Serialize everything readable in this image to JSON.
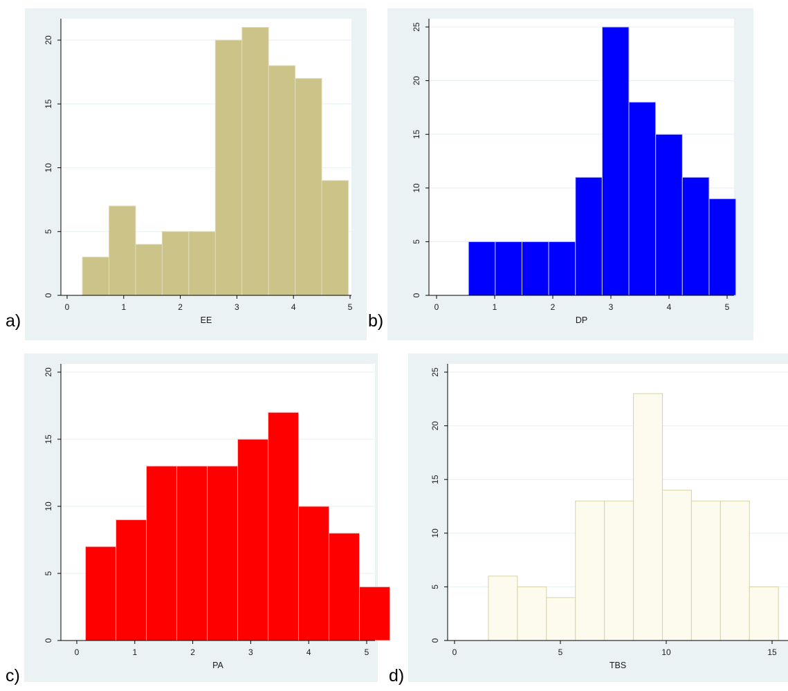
{
  "chart_data": [
    {
      "type": "bar",
      "panel_label": "a)",
      "xlabel": "EE",
      "ylabel": "",
      "xlim": [
        0,
        5
      ],
      "ylim": [
        0,
        21
      ],
      "xticks": [
        0,
        1,
        2,
        3,
        4,
        5
      ],
      "yticks": [
        0,
        5,
        10,
        15,
        20
      ],
      "bin_width": 0.47,
      "bin_start": 0.27,
      "values": [
        3,
        7,
        4,
        5,
        5,
        20,
        21,
        18,
        17,
        9
      ],
      "color": "#cbc387",
      "edge_color": "#e2ddba"
    },
    {
      "type": "bar",
      "panel_label": "b)",
      "xlabel": "DP",
      "ylabel": "",
      "xlim": [
        0,
        5
      ],
      "ylim": [
        0,
        25
      ],
      "xticks": [
        0,
        1,
        2,
        3,
        4,
        5
      ],
      "yticks": [
        0,
        5,
        10,
        15,
        20,
        25
      ],
      "bin_width": 0.46,
      "bin_start": 0.55,
      "values": [
        5,
        5,
        5,
        5,
        11,
        25,
        18,
        15,
        11,
        9
      ],
      "color": "#0000ff",
      "edge_color": "#c9c9f0"
    },
    {
      "type": "bar",
      "panel_label": "c)",
      "xlabel": "PA",
      "ylabel": "",
      "xlim": [
        0,
        5
      ],
      "ylim": [
        0,
        20
      ],
      "xticks": [
        0,
        1,
        2,
        3,
        4,
        5
      ],
      "yticks": [
        0,
        5,
        10,
        15,
        20
      ],
      "bin_width": 0.525,
      "bin_start": 0.15,
      "values": [
        7,
        9,
        13,
        13,
        13,
        15,
        17,
        10,
        8,
        4
      ],
      "color": "#ff0000",
      "edge_color": "#f4c6c6"
    },
    {
      "type": "bar",
      "panel_label": "d)",
      "xlabel": "TBS",
      "ylabel": "",
      "xlim": [
        0,
        15
      ],
      "ylim": [
        0,
        25
      ],
      "xticks": [
        0,
        5,
        10,
        15
      ],
      "yticks": [
        0,
        5,
        10,
        15,
        20,
        25
      ],
      "bin_width": 1.37,
      "bin_start": 1.6,
      "values": [
        6,
        5,
        4,
        13,
        13,
        23,
        14,
        13,
        13,
        5
      ],
      "color": "#fdfaee",
      "edge_color": "#d8d3a0"
    }
  ],
  "colors": {
    "panel_background": "#eaf2f3",
    "plot_background": "#ffffff",
    "grid": "#eaf2f3",
    "axis": "#000000"
  }
}
